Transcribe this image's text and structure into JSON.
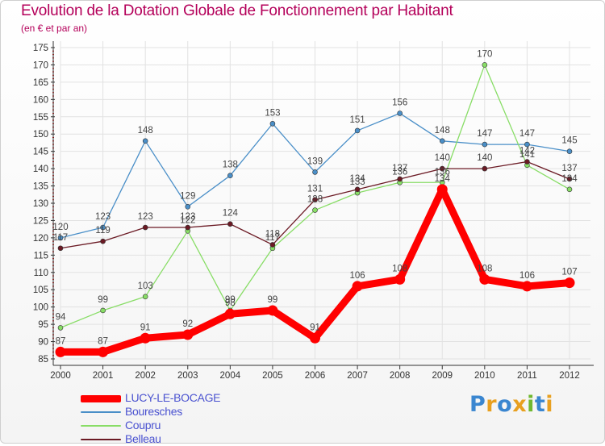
{
  "title": "Evolution de la Dotation Globale de Fonctionnement par Habitant",
  "subtitle": "(en € et par an)",
  "logo": {
    "letters": [
      "P",
      "r",
      "o",
      "x",
      "i",
      "t",
      "i"
    ],
    "colors": [
      "#3a86d0",
      "#e8a020",
      "#3a86d0",
      "#e8a020",
      "#70b830",
      "#3a86d0",
      "#e8a020"
    ]
  },
  "chart_data": {
    "type": "line",
    "title": "Evolution de la Dotation Globale de Fonctionnement par Habitant",
    "subtitle": "(en € et par an)",
    "x": [
      "2000",
      "2001",
      "2002",
      "2003",
      "2004",
      "2005",
      "2006",
      "2007",
      "2008",
      "2009",
      "2010",
      "2011",
      "2012"
    ],
    "ylim": [
      85,
      175
    ],
    "yticks": [
      85,
      90,
      95,
      100,
      105,
      110,
      115,
      120,
      125,
      130,
      135,
      140,
      145,
      150,
      155,
      160,
      165,
      170,
      175
    ],
    "grid": true,
    "legend_position": "bottom-left",
    "series": [
      {
        "name": "LUCY-LE-BOCAGE",
        "color": "#ff0000",
        "values": [
          87,
          87,
          91,
          92,
          98,
          99,
          91,
          106,
          108,
          134,
          108,
          106,
          107
        ]
      },
      {
        "name": "Bouresches",
        "color": "#4a8fc8",
        "values": [
          120,
          123,
          148,
          129,
          138,
          153,
          139,
          151,
          156,
          148,
          147,
          147,
          145
        ]
      },
      {
        "name": "Coupru",
        "color": "#88dd66",
        "values": [
          94,
          99,
          103,
          122,
          99,
          117,
          128,
          133,
          136,
          136,
          170,
          141,
          134
        ]
      },
      {
        "name": "Belleau",
        "color": "#6b1a24",
        "values": [
          117,
          119,
          123,
          123,
          124,
          118,
          131,
          134,
          137,
          140,
          140,
          142,
          137
        ]
      }
    ]
  }
}
